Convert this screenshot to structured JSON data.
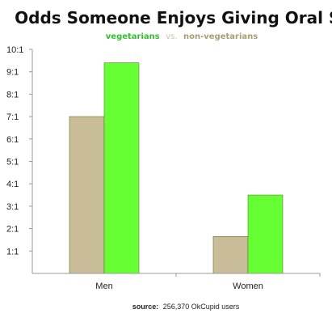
{
  "chart_data": {
    "type": "bar",
    "title": "Odds Someone Enjoys Giving Oral Sex",
    "legend": {
      "series_a": "vegetarians",
      "separator": "vs.",
      "series_b": "non-vegetarians"
    },
    "categories": [
      "Men",
      "Women"
    ],
    "series": [
      {
        "name": "non-vegetarians",
        "color": "#c8bd98",
        "values": [
          7.0,
          1.65
        ]
      },
      {
        "name": "vegetarians",
        "color": "#66ff33",
        "values": [
          9.4,
          3.5
        ]
      }
    ],
    "ylim": [
      0,
      10
    ],
    "yticks": [
      1,
      2,
      3,
      4,
      5,
      6,
      7,
      8,
      9,
      10
    ],
    "ytick_labels": [
      "1:1",
      "2:1",
      "3:1",
      "4:1",
      "5:1",
      "6:1",
      "7:1",
      "8:1",
      "9:1",
      "10:1"
    ],
    "grid": false,
    "legend_position": "top",
    "source_label": "source:",
    "source_text": "256,370 OkCupid users"
  }
}
